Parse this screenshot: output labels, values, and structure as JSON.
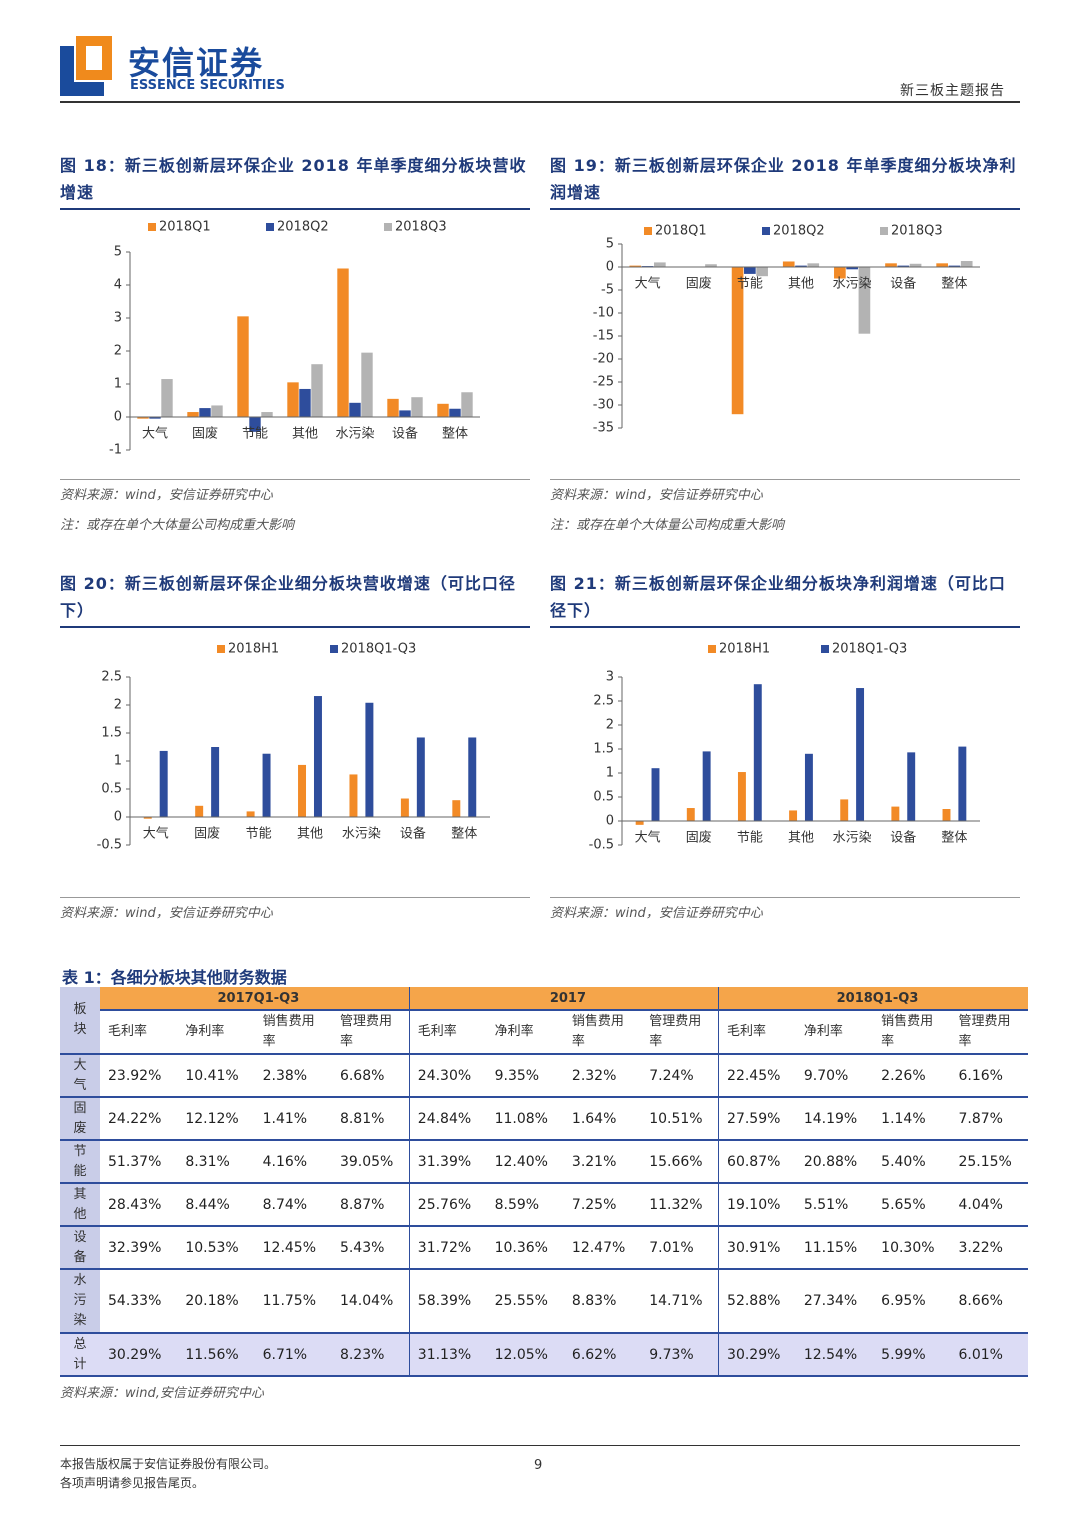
{
  "header": {
    "company": "安信证券",
    "company_en": "ESSENCE SECURITIES",
    "report_type": "新三板主题报告"
  },
  "chart_data": [
    {
      "type": "bar",
      "title": "图 18：新三板创新层环保企业 2018 年单季度细分板块营收增速",
      "categories": [
        "大气",
        "固废",
        "节能",
        "其他",
        "水污染",
        "设备",
        "整体"
      ],
      "series": [
        {
          "name": "2018Q1",
          "color": "#f28a26",
          "values": [
            -0.05,
            0.15,
            3.05,
            1.05,
            4.5,
            0.55,
            0.4
          ]
        },
        {
          "name": "2018Q2",
          "color": "#2e4d9c",
          "values": [
            -0.05,
            0.27,
            -0.45,
            0.85,
            0.43,
            0.2,
            0.25
          ]
        },
        {
          "name": "2018Q3",
          "color": "#b3b3b3",
          "values": [
            1.15,
            0.35,
            0.15,
            1.6,
            1.95,
            0.6,
            0.75
          ]
        }
      ],
      "ylim": [
        -1,
        5
      ],
      "yticks": [
        -1,
        0,
        1,
        2,
        3,
        4,
        5
      ],
      "source": "资料来源：wind，安信证券研究中心",
      "note": "注：或存在单个大体量公司构成重大影响"
    },
    {
      "type": "bar",
      "title": "图 19：新三板创新层环保企业 2018 年单季度细分板块净利润增速",
      "categories": [
        "大气",
        "固废",
        "节能",
        "其他",
        "水污染",
        "设备",
        "整体"
      ],
      "series": [
        {
          "name": "2018Q1",
          "color": "#f28a26",
          "values": [
            0.3,
            0,
            -32,
            1.2,
            -2.5,
            0.8,
            0.8
          ]
        },
        {
          "name": "2018Q2",
          "color": "#2e4d9c",
          "values": [
            0.2,
            0,
            -1.5,
            0.3,
            -0.5,
            0.3,
            0.3
          ]
        },
        {
          "name": "2018Q3",
          "color": "#b3b3b3",
          "values": [
            1,
            0.6,
            -2,
            0.8,
            -14.5,
            0.7,
            1.3
          ]
        }
      ],
      "ylim": [
        -35,
        5
      ],
      "yticks": [
        -35,
        -30,
        -25,
        -20,
        -15,
        -10,
        -5,
        0,
        5
      ],
      "source": "资料来源：wind，安信证券研究中心",
      "note": "注：或存在单个大体量公司构成重大影响"
    },
    {
      "type": "bar",
      "title": "图 20：新三板创新层环保企业细分板块营收增速（可比口径下）",
      "categories": [
        "大气",
        "固废",
        "节能",
        "其他",
        "水污染",
        "设备",
        "整体"
      ],
      "series": [
        {
          "name": "2018H1",
          "color": "#f28a26",
          "values": [
            -0.03,
            0.2,
            0.1,
            0.93,
            0.76,
            0.33,
            0.3
          ]
        },
        {
          "name": "2018Q1-Q3",
          "color": "#2e4d9c",
          "values": [
            1.18,
            1.25,
            1.13,
            2.16,
            2.04,
            1.42,
            1.42
          ]
        }
      ],
      "ylim": [
        -0.5,
        2.5
      ],
      "yticks": [
        -0.5,
        0,
        0.5,
        1,
        1.5,
        2,
        2.5
      ],
      "source": "资料来源：wind，安信证券研究中心"
    },
    {
      "type": "bar",
      "title": "图 21：新三板创新层环保企业细分板块净利润增速（可比口径下）",
      "categories": [
        "大气",
        "固废",
        "节能",
        "其他",
        "水污染",
        "设备",
        "整体"
      ],
      "series": [
        {
          "name": "2018H1",
          "color": "#f28a26",
          "values": [
            -0.08,
            0.27,
            1.02,
            0.22,
            0.45,
            0.3,
            0.25
          ]
        },
        {
          "name": "2018Q1-Q3",
          "color": "#2e4d9c",
          "values": [
            1.1,
            1.45,
            2.85,
            1.4,
            2.77,
            1.43,
            1.55
          ]
        }
      ],
      "ylim": [
        -0.5,
        3
      ],
      "yticks": [
        -0.5,
        0,
        0.5,
        1,
        1.5,
        2,
        2.5,
        3
      ],
      "source": "资料来源：wind，安信证券研究中心"
    }
  ],
  "table": {
    "title": "表 1：各细分板块其他财务数据",
    "corner": "板块",
    "groups": [
      "2017Q1-Q3",
      "2017",
      "2018Q1-Q3"
    ],
    "columns": [
      "毛利率",
      "净利率",
      "销售费用率",
      "管理费用率",
      "毛利率",
      "净利率",
      "销售费用率",
      "管理费用率",
      "毛利率",
      "净利率",
      "销售费用率",
      "管理费用率"
    ],
    "rows": [
      [
        "大气",
        "23.92%",
        "10.41%",
        "2.38%",
        "6.68%",
        "24.30%",
        "9.35%",
        "2.32%",
        "7.24%",
        "22.45%",
        "9.70%",
        "2.26%",
        "6.16%"
      ],
      [
        "固废",
        "24.22%",
        "12.12%",
        "1.41%",
        "8.81%",
        "24.84%",
        "11.08%",
        "1.64%",
        "10.51%",
        "27.59%",
        "14.19%",
        "1.14%",
        "7.87%"
      ],
      [
        "节能",
        "51.37%",
        "8.31%",
        "4.16%",
        "39.05%",
        "31.39%",
        "12.40%",
        "3.21%",
        "15.66%",
        "60.87%",
        "20.88%",
        "5.40%",
        "25.15%"
      ],
      [
        "其他",
        "28.43%",
        "8.44%",
        "8.74%",
        "8.87%",
        "25.76%",
        "8.59%",
        "7.25%",
        "11.32%",
        "19.10%",
        "5.51%",
        "5.65%",
        "4.04%"
      ],
      [
        "设备",
        "32.39%",
        "10.53%",
        "12.45%",
        "5.43%",
        "31.72%",
        "10.36%",
        "12.47%",
        "7.01%",
        "30.91%",
        "11.15%",
        "10.30%",
        "3.22%"
      ],
      [
        "水污染",
        "54.33%",
        "20.18%",
        "11.75%",
        "14.04%",
        "58.39%",
        "25.55%",
        "8.83%",
        "14.71%",
        "52.88%",
        "27.34%",
        "6.95%",
        "8.66%"
      ],
      [
        "总计",
        "30.29%",
        "11.56%",
        "6.71%",
        "8.23%",
        "31.13%",
        "12.05%",
        "6.62%",
        "9.73%",
        "30.29%",
        "12.54%",
        "5.99%",
        "6.01%"
      ]
    ],
    "source": "资料来源：wind,安信证券研究中心"
  },
  "footer": {
    "copyright": "本报告版权属于安信证券股份有限公司。",
    "notice": "各项声明请参见报告尾页。",
    "page": 9
  }
}
